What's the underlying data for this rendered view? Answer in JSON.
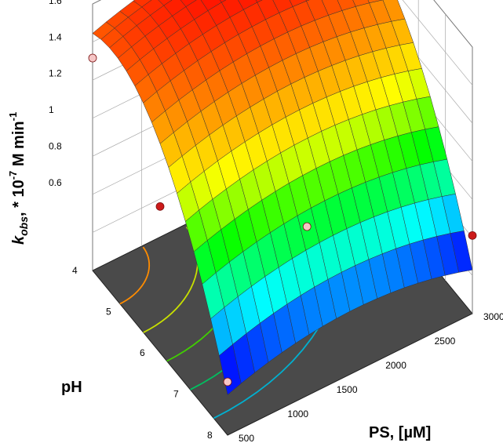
{
  "chart_data": {
    "type": "surface",
    "title": "",
    "zlabel_main": "k",
    "zlabel_sub": "obs",
    "zlabel_rest": ", * 10",
    "zlabel_exp1": "-7",
    "zlabel_mid": " M min",
    "zlabel_exp2": "-1",
    "xlabel": "PS, [µM]",
    "ylabel": "pH",
    "x_ticks": [
      "500",
      "1000",
      "1500",
      "2000",
      "2500",
      "3000"
    ],
    "y_ticks": [
      "4",
      "5",
      "6",
      "7",
      "8"
    ],
    "z_ticks": [
      "0.6",
      "0.8",
      "1",
      "1.2",
      "1.4",
      "1.6"
    ],
    "xlim": [
      500,
      3000
    ],
    "ylim": [
      4,
      8
    ],
    "zlim": [
      0.5,
      1.6
    ],
    "colormap": [
      "#0000ff",
      "#00ffff",
      "#00ff00",
      "#ffff00",
      "#ff8000",
      "#ff0000"
    ],
    "contour_colors": [
      "#ff8c00",
      "#c8e000",
      "#40d000",
      "#00c060",
      "#00b0d0"
    ],
    "surface_model": {
      "intercept": 1.53,
      "ph_opt": 4.6,
      "ph_quad": -0.085,
      "ps_opt": 1800,
      "ps_quad": -6.5e-08,
      "interaction": 0.0
    },
    "points": [
      {
        "ps": 500,
        "ph": 4,
        "k": 1.27,
        "color": "#f6c6c6"
      },
      {
        "ps": 1200,
        "ph": 4,
        "k": 1.55,
        "color": "#cc1a1a"
      },
      {
        "ps": 3000,
        "ph": 4,
        "k": 1.55,
        "color": "#cc1a1a"
      },
      {
        "ps": 500,
        "ph": 6,
        "k": 0.95,
        "color": "#cc1a1a"
      },
      {
        "ps": 3000,
        "ph": 8,
        "k": 0.62,
        "color": "#cc1a1a"
      },
      {
        "ps": 2000,
        "ph": 6,
        "k": 0.5,
        "color": "#f6c6c6"
      },
      {
        "ps": 500,
        "ph": 8,
        "k": 0.5,
        "color": "#f6c6c6"
      }
    ]
  }
}
